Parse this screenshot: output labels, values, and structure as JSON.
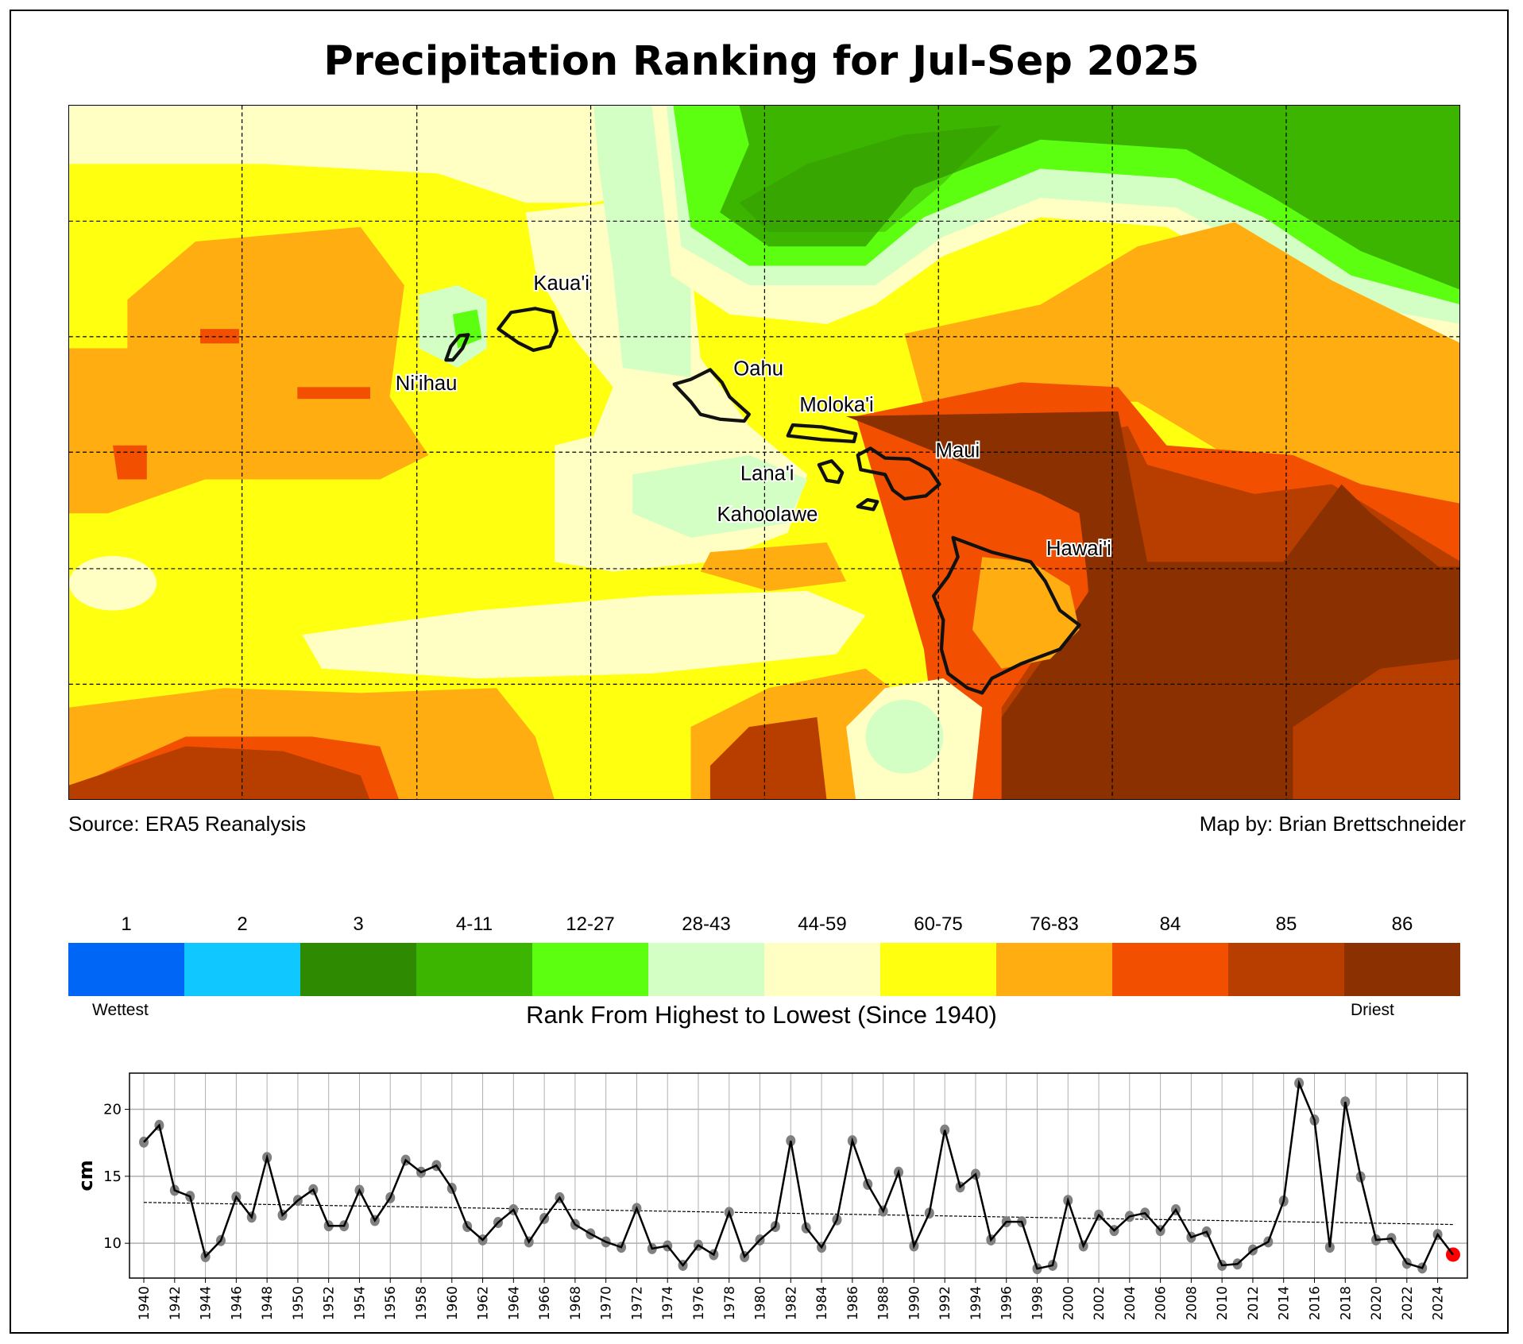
{
  "title": "Precipitation Ranking for Jul-Sep 2025",
  "map": {
    "source": "Source: ERA5 Reanalysis",
    "credit": "Map by: Brian Brettschneider",
    "islands": [
      "Kaua'i",
      "Ni'ihau",
      "Oahu",
      "Moloka'i",
      "Lana'i",
      "Maui",
      "Kahoolawe",
      "Hawai'i"
    ]
  },
  "colorbar": {
    "title": "Rank From Highest to Lowest (Since 1940)",
    "low_label": "Wettest",
    "high_label": "Driest",
    "bins": [
      {
        "label": "1",
        "color": "#0066f5"
      },
      {
        "label": "2",
        "color": "#10c8ff"
      },
      {
        "label": "3",
        "color": "#2e8a00"
      },
      {
        "label": "4-11",
        "color": "#3cb500"
      },
      {
        "label": "12-27",
        "color": "#5cff10"
      },
      {
        "label": "28-43",
        "color": "#d4ffc4"
      },
      {
        "label": "44-59",
        "color": "#ffffc4"
      },
      {
        "label": "60-75",
        "color": "#ffff10"
      },
      {
        "label": "76-83",
        "color": "#ffad10"
      },
      {
        "label": "84",
        "color": "#f25000"
      },
      {
        "label": "85",
        "color": "#b83e00"
      },
      {
        "label": "86",
        "color": "#8b3000"
      }
    ]
  },
  "chart_data": {
    "type": "line",
    "title": "",
    "xlabel": "",
    "ylabel": "cm",
    "xlim": [
      1939.07,
      2025.93
    ],
    "ylim": [
      7.4,
      22.7
    ],
    "yticks": [
      10,
      15,
      20
    ],
    "grid": true,
    "highlight": {
      "year": 2025,
      "color": "#ff0000"
    },
    "trend": {
      "x": [
        1940,
        2025
      ],
      "y": [
        13.05,
        11.4
      ]
    },
    "x": [
      1940,
      1941,
      1942,
      1943,
      1944,
      1945,
      1946,
      1947,
      1948,
      1949,
      1950,
      1951,
      1952,
      1953,
      1954,
      1955,
      1956,
      1957,
      1958,
      1959,
      1960,
      1961,
      1962,
      1963,
      1964,
      1965,
      1966,
      1967,
      1968,
      1969,
      1970,
      1971,
      1972,
      1973,
      1974,
      1975,
      1976,
      1977,
      1978,
      1979,
      1980,
      1981,
      1982,
      1983,
      1984,
      1985,
      1986,
      1987,
      1988,
      1989,
      1990,
      1991,
      1992,
      1993,
      1994,
      1995,
      1996,
      1997,
      1998,
      1999,
      2000,
      2001,
      2002,
      2003,
      2004,
      2005,
      2006,
      2007,
      2008,
      2009,
      2010,
      2011,
      2012,
      2013,
      2014,
      2015,
      2016,
      2017,
      2018,
      2019,
      2020,
      2021,
      2022,
      2023,
      2024,
      2025
    ],
    "y": [
      17.55,
      18.8,
      13.95,
      13.5,
      9.0,
      10.2,
      13.45,
      11.95,
      16.4,
      12.1,
      13.2,
      14.0,
      11.3,
      11.3,
      13.95,
      11.7,
      13.4,
      16.2,
      15.3,
      15.8,
      14.1,
      11.25,
      10.25,
      11.55,
      12.5,
      10.1,
      11.85,
      13.4,
      11.4,
      10.7,
      10.1,
      9.7,
      12.6,
      9.6,
      9.8,
      8.35,
      9.85,
      9.15,
      12.3,
      9.0,
      10.25,
      11.25,
      17.65,
      11.15,
      9.7,
      11.75,
      17.65,
      14.4,
      12.4,
      15.3,
      9.8,
      12.25,
      18.45,
      14.2,
      15.15,
      10.25,
      11.6,
      11.6,
      8.1,
      8.35,
      13.2,
      9.8,
      12.1,
      10.95,
      12.0,
      12.25,
      10.95,
      12.5,
      10.45,
      10.85,
      8.35,
      8.45,
      9.5,
      10.1,
      13.15,
      21.95,
      19.2,
      9.7,
      20.55,
      14.95,
      10.25,
      10.35,
      8.5,
      8.15,
      10.65,
      9.15
    ]
  }
}
